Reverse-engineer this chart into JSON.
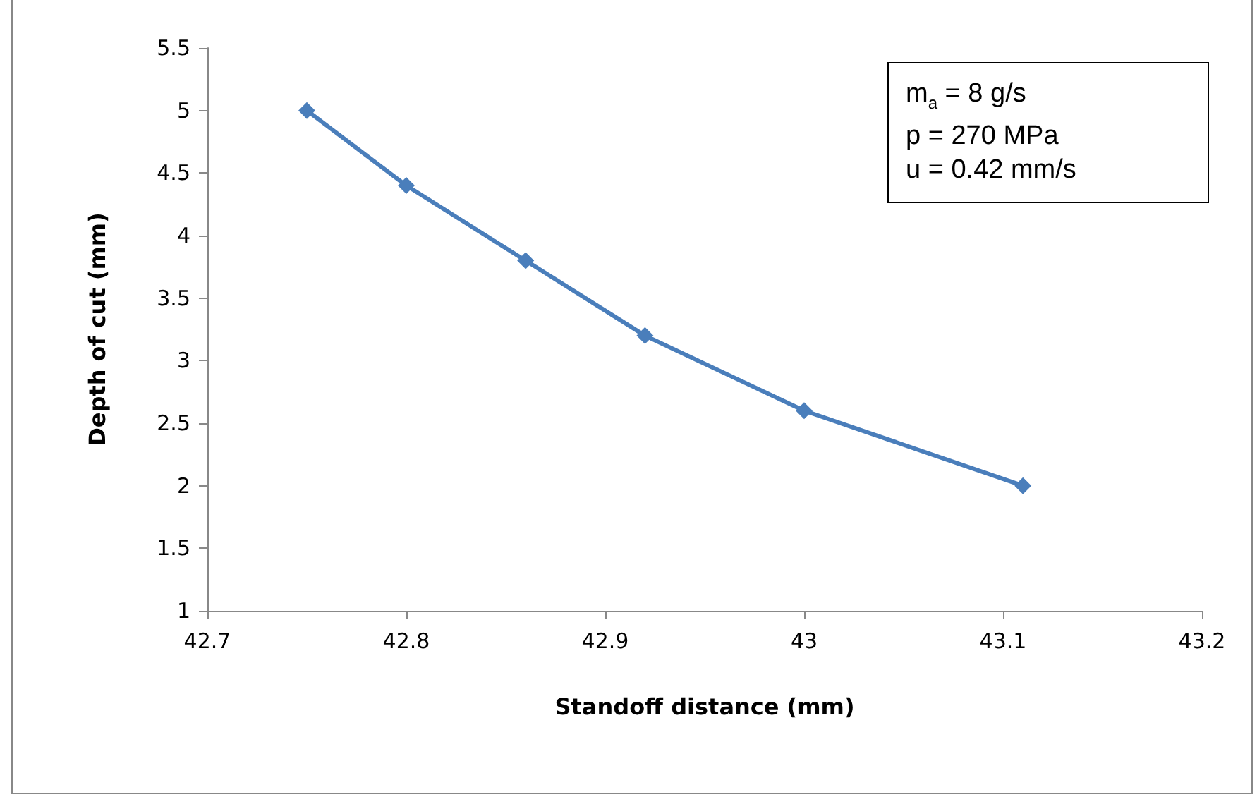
{
  "chart_data": {
    "type": "line",
    "xlabel": "Standoff distance (mm)",
    "ylabel": "Depth of cut (mm)",
    "annotations": [
      "m$_{a}$ = 8 g/s",
      "p = 270 MPa",
      "u = 0.42 mm/s"
    ],
    "series": [
      {
        "color": "#4a7ebb",
        "x": [
          42.75,
          42.8,
          42.86,
          42.92,
          43.0,
          43.11
        ],
        "values": [
          5.0,
          4.4,
          3.8,
          3.2,
          2.6,
          2.0
        ]
      }
    ],
    "xlim": [
      42.7,
      43.2
    ],
    "xticks": [
      42.7,
      42.8,
      42.9,
      43,
      43.1,
      43.2
    ],
    "ylim": [
      1,
      5.5
    ],
    "yticks": [
      1,
      1.5,
      2,
      2.5,
      3,
      3.5,
      4,
      4.5,
      5,
      5.5
    ],
    "grid": false,
    "marker": "diamond",
    "line_style": "solid"
  }
}
